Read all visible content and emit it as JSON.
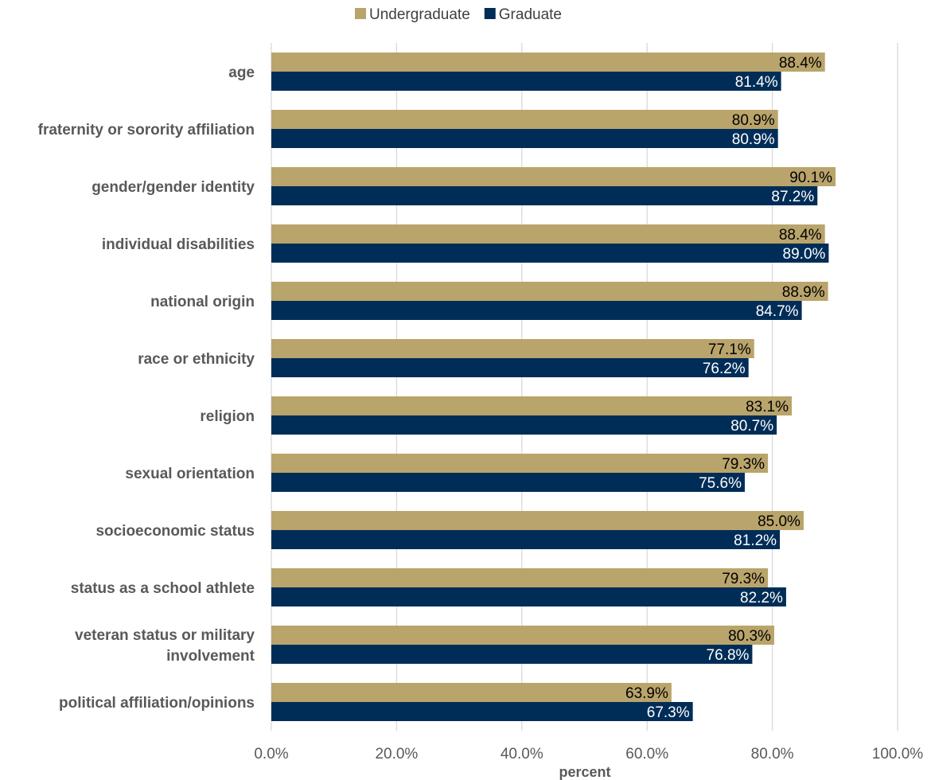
{
  "chart_data": {
    "type": "bar",
    "orientation": "horizontal",
    "title": "",
    "xlabel": "percent",
    "ylabel": "",
    "xlim": [
      0,
      100
    ],
    "x_ticks": [
      "0.0%",
      "20.0%",
      "40.0%",
      "60.0%",
      "80.0%",
      "100.0%"
    ],
    "grid": true,
    "legend_position": "top-center",
    "categories": [
      "age",
      "fraternity or sorority affiliation",
      "gender/gender identity",
      "individual disabilities",
      "national origin",
      "race or ethnicity",
      "religion",
      "sexual orientation",
      "socioeconomic status",
      "status as a school athlete",
      "veteran status or military involvement",
      "political affiliation/opinions"
    ],
    "series": [
      {
        "name": "Undergraduate",
        "color": "#B9A46B",
        "label_color": "#000000",
        "values": [
          88.4,
          80.9,
          90.1,
          88.4,
          88.9,
          77.1,
          83.1,
          79.3,
          85.0,
          79.3,
          80.3,
          63.9
        ],
        "labels": [
          "88.4%",
          "80.9%",
          "90.1%",
          "88.4%",
          "88.9%",
          "77.1%",
          "83.1%",
          "79.3%",
          "85.0%",
          "79.3%",
          "80.3%",
          "63.9%"
        ]
      },
      {
        "name": "Graduate",
        "color": "#002D57",
        "label_color": "#ffffff",
        "values": [
          81.4,
          80.9,
          87.2,
          89.0,
          84.7,
          76.2,
          80.7,
          75.6,
          81.2,
          82.2,
          76.8,
          67.3
        ],
        "labels": [
          "81.4%",
          "80.9%",
          "87.2%",
          "89.0%",
          "84.7%",
          "76.2%",
          "80.7%",
          "75.6%",
          "81.2%",
          "82.2%",
          "76.8%",
          "67.3%"
        ]
      }
    ]
  }
}
